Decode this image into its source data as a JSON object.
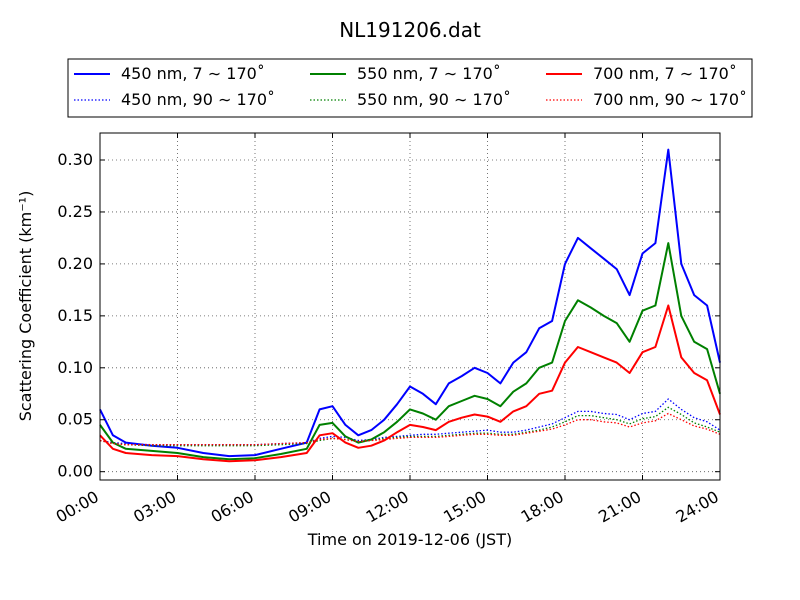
{
  "chart_data": {
    "type": "line",
    "title": "NL191206.dat",
    "xlabel": "Time on 2019-12-06 (JST)",
    "ylabel": "Scattering Coefficient (km⁻¹)",
    "x_unit": "hours",
    "xlim": [
      0,
      24
    ],
    "ylim": [
      -0.008,
      0.326
    ],
    "xticks": [
      0,
      3,
      6,
      9,
      12,
      15,
      18,
      21,
      24
    ],
    "xtick_labels": [
      "00:00",
      "03:00",
      "06:00",
      "09:00",
      "12:00",
      "15:00",
      "18:00",
      "21:00",
      "24:00"
    ],
    "yticks": [
      0.0,
      0.05,
      0.1,
      0.15,
      0.2,
      0.25,
      0.3
    ],
    "ytick_labels": [
      "0.00",
      "0.05",
      "0.10",
      "0.15",
      "0.20",
      "0.25",
      "0.30"
    ],
    "grid": true,
    "legend_position": "top",
    "x": [
      0,
      0.5,
      1,
      2,
      3,
      4,
      5,
      6,
      7,
      8,
      8.5,
      9,
      9.5,
      10,
      10.5,
      11,
      11.5,
      12,
      12.5,
      13,
      13.5,
      14,
      14.5,
      15,
      15.5,
      16,
      16.5,
      17,
      17.5,
      18,
      18.5,
      19,
      19.5,
      20,
      20.5,
      21,
      21.5,
      22,
      22.5,
      23,
      23.5,
      24
    ],
    "series": [
      {
        "name": "450 nm, 7 ∼ 170˚",
        "color": "#0000ff",
        "style": "solid",
        "values": [
          0.06,
          0.035,
          0.028,
          0.025,
          0.023,
          0.018,
          0.015,
          0.016,
          0.022,
          0.028,
          0.06,
          0.063,
          0.045,
          0.035,
          0.04,
          0.05,
          0.065,
          0.082,
          0.075,
          0.065,
          0.085,
          0.092,
          0.1,
          0.095,
          0.085,
          0.105,
          0.115,
          0.138,
          0.145,
          0.2,
          0.225,
          0.215,
          0.205,
          0.195,
          0.17,
          0.21,
          0.22,
          0.31,
          0.2,
          0.17,
          0.16,
          0.105
        ]
      },
      {
        "name": "450 nm, 90 ∼ 170˚",
        "color": "#0000ff",
        "style": "dotted",
        "values": [
          0.03,
          0.028,
          0.027,
          0.026,
          0.026,
          0.026,
          0.026,
          0.026,
          0.027,
          0.028,
          0.032,
          0.034,
          0.033,
          0.03,
          0.031,
          0.033,
          0.034,
          0.035,
          0.036,
          0.036,
          0.037,
          0.038,
          0.039,
          0.04,
          0.038,
          0.038,
          0.04,
          0.043,
          0.046,
          0.052,
          0.058,
          0.058,
          0.056,
          0.055,
          0.05,
          0.056,
          0.058,
          0.07,
          0.06,
          0.052,
          0.048,
          0.04
        ]
      },
      {
        "name": "550 nm, 7 ∼ 170˚",
        "color": "#008000",
        "style": "solid",
        "values": [
          0.045,
          0.028,
          0.022,
          0.02,
          0.018,
          0.014,
          0.012,
          0.013,
          0.017,
          0.022,
          0.045,
          0.047,
          0.034,
          0.028,
          0.031,
          0.038,
          0.048,
          0.06,
          0.056,
          0.05,
          0.063,
          0.068,
          0.073,
          0.07,
          0.063,
          0.077,
          0.085,
          0.1,
          0.105,
          0.145,
          0.165,
          0.158,
          0.15,
          0.143,
          0.125,
          0.155,
          0.16,
          0.22,
          0.15,
          0.125,
          0.118,
          0.075
        ]
      },
      {
        "name": "550 nm, 90 ∼ 170˚",
        "color": "#008000",
        "style": "dotted",
        "values": [
          0.03,
          0.027,
          0.026,
          0.025,
          0.025,
          0.025,
          0.025,
          0.025,
          0.026,
          0.027,
          0.03,
          0.032,
          0.031,
          0.029,
          0.03,
          0.032,
          0.033,
          0.034,
          0.034,
          0.034,
          0.035,
          0.036,
          0.037,
          0.037,
          0.036,
          0.036,
          0.038,
          0.04,
          0.043,
          0.048,
          0.054,
          0.054,
          0.052,
          0.05,
          0.046,
          0.051,
          0.053,
          0.062,
          0.055,
          0.047,
          0.043,
          0.038
        ]
      },
      {
        "name": "700 nm, 7 ∼ 170˚",
        "color": "#ff0000",
        "style": "solid",
        "values": [
          0.035,
          0.022,
          0.018,
          0.016,
          0.015,
          0.012,
          0.01,
          0.011,
          0.014,
          0.018,
          0.035,
          0.037,
          0.028,
          0.023,
          0.025,
          0.03,
          0.038,
          0.045,
          0.043,
          0.04,
          0.048,
          0.052,
          0.055,
          0.053,
          0.048,
          0.058,
          0.063,
          0.075,
          0.078,
          0.105,
          0.12,
          0.115,
          0.11,
          0.105,
          0.095,
          0.115,
          0.12,
          0.16,
          0.11,
          0.095,
          0.088,
          0.055
        ]
      },
      {
        "name": "700 nm, 90 ∼ 170˚",
        "color": "#ff0000",
        "style": "dotted",
        "values": [
          0.03,
          0.027,
          0.026,
          0.026,
          0.026,
          0.026,
          0.026,
          0.026,
          0.027,
          0.028,
          0.031,
          0.032,
          0.031,
          0.029,
          0.03,
          0.031,
          0.032,
          0.033,
          0.033,
          0.033,
          0.034,
          0.035,
          0.036,
          0.036,
          0.035,
          0.035,
          0.037,
          0.039,
          0.041,
          0.045,
          0.05,
          0.05,
          0.048,
          0.047,
          0.043,
          0.047,
          0.049,
          0.056,
          0.05,
          0.044,
          0.041,
          0.036
        ]
      }
    ]
  }
}
